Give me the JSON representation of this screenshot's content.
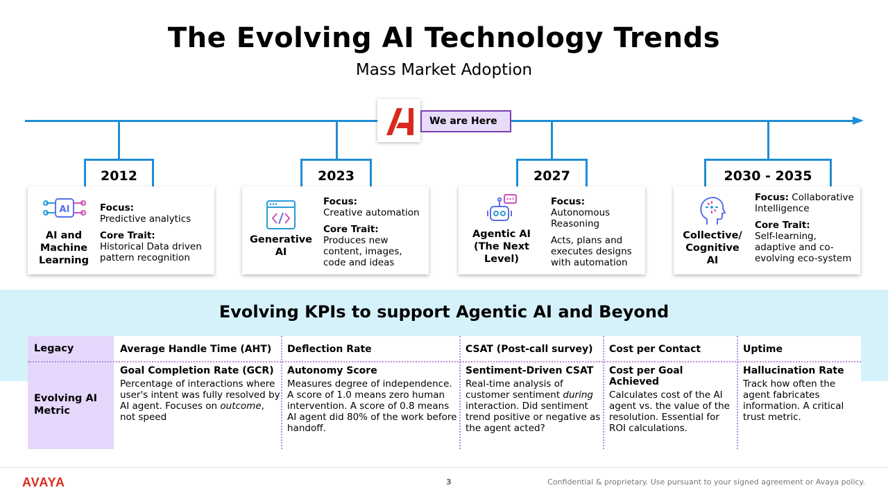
{
  "header": {
    "title": "The Evolving AI Technology Trends",
    "subtitle": "Mass Market Adoption"
  },
  "timeline": {
    "marker_label": "We are Here",
    "years": [
      "2012",
      "2023",
      "2027",
      "2030 - 2035"
    ]
  },
  "cards": [
    {
      "name": "AI and Machine Learning",
      "icon": "ai-chip-icon",
      "focus_label": "Focus:",
      "focus": "Predictive analytics",
      "trait_label": "Core Trait:",
      "trait": "Historical Data driven pattern recognition"
    },
    {
      "name": "Generative AI",
      "icon": "code-window-icon",
      "focus_label": "Focus:",
      "focus": "Creative automation",
      "trait_label": "Core Trait:",
      "trait": "Produces new content, images, code and ideas"
    },
    {
      "name": "Agentic AI (The Next Level)",
      "icon": "robot-icon",
      "focus_label": "Focus:",
      "focus": "Autonomous Reasoning",
      "trait": "Acts, plans and executes designs with automation"
    },
    {
      "name": "Collective/ Cognitive AI",
      "icon": "head-brain-icon",
      "focus_label": "Focus:",
      "focus": "Collaborative Intelligence",
      "trait_label": "Core Trait:",
      "trait": "Self-learning, adaptive and co-evolving eco-system"
    }
  ],
  "kpis": {
    "title": "Evolving KPIs  to support Agentic AI and Beyond",
    "legacy_label": "Legacy",
    "evolving_label": "Evolving AI Metric",
    "legacy": [
      "Average Handle Time (AHT)",
      "Deflection Rate",
      "CSAT (Post-call survey)",
      "Cost per Contact",
      "Uptime"
    ],
    "evolving": [
      {
        "name": "Goal Completion Rate (GCR)",
        "desc_a": "Percentage of interactions where user's intent was fully resolved by AI agent. Focuses on ",
        "desc_em": "outcome",
        "desc_b": ", not speed"
      },
      {
        "name": "Autonomy Score",
        "desc_a": "Measures degree of independence. A score of 1.0 means zero human intervention. A score of 0.8 means AI agent did 80% of the work before handoff."
      },
      {
        "name": "Sentiment-Driven CSAT",
        "desc_a": "Real-time analysis of customer sentiment ",
        "desc_em": "during",
        "desc_b": " interaction. Did sentiment trend positive or negative as the agent acted?"
      },
      {
        "name": "Cost per Goal Achieved",
        "desc_a": "Calculates cost of the AI agent vs. the value of the resolution. Essential for ROI calculations."
      },
      {
        "name": "Hallucination Rate",
        "desc_a": "Track how often the agent fabricates information. A critical trust metric."
      }
    ]
  },
  "footer": {
    "brand": "AVAYA",
    "page": "3",
    "confidential": "Confidential & proprietary. Use pursuant to your signed agreement or Avaya policy."
  },
  "colors": {
    "timeline": "#1f8dd6",
    "highlight_purple": "#7b3fb0",
    "lavender": "#e5d6fb",
    "kpi_band": "#d5f2fb",
    "brand_red": "#da291c"
  }
}
